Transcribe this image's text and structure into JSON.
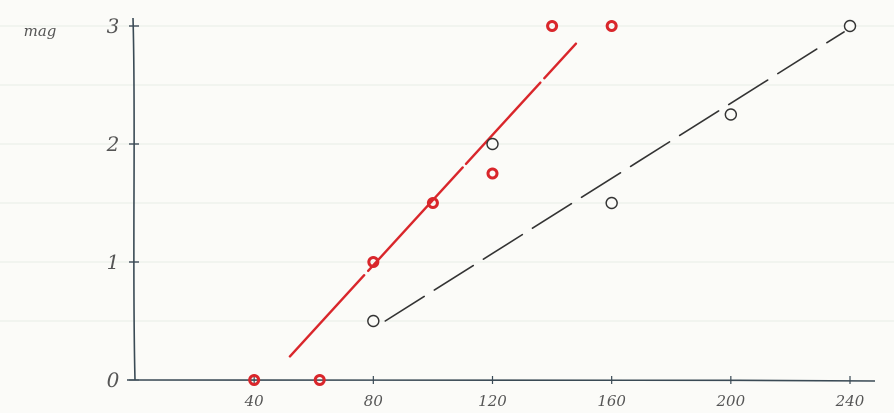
{
  "chart_data": {
    "type": "scatter",
    "title": "",
    "xlabel": "",
    "ylabel": "mag",
    "xlim": [
      0,
      240
    ],
    "ylim": [
      0,
      3
    ],
    "x_ticks": [
      40,
      80,
      120,
      160,
      200,
      240
    ],
    "x_tick_labels": [
      "40",
      "80",
      "120",
      "160",
      "200",
      "240"
    ],
    "y_ticks": [
      0,
      1,
      2,
      3
    ],
    "y_tick_labels": [
      "0",
      "1",
      "2",
      "3"
    ],
    "grid": true,
    "series": [
      {
        "color": "#d9262b",
        "points": [
          {
            "x": 40,
            "y": 0
          },
          {
            "x": 62,
            "y": 0
          },
          {
            "x": 80,
            "y": 1
          },
          {
            "x": 100,
            "y": 1.5
          },
          {
            "x": 120,
            "y": 1.75
          },
          {
            "x": 140,
            "y": 3
          },
          {
            "x": 160,
            "y": 3
          }
        ],
        "fit_line": [
          {
            "x": 52,
            "y": 0.2
          },
          {
            "x": 148,
            "y": 2.85
          }
        ],
        "line_style": "solid"
      },
      {
        "color": "#333333",
        "points": [
          {
            "x": 80,
            "y": 0.5
          },
          {
            "x": 120,
            "y": 2
          },
          {
            "x": 160,
            "y": 1.5
          },
          {
            "x": 200,
            "y": 2.25
          },
          {
            "x": 240,
            "y": 3
          }
        ],
        "fit_line": [
          {
            "x": 84,
            "y": 0.5
          },
          {
            "x": 238,
            "y": 2.95
          }
        ],
        "line_style": "dashed"
      }
    ]
  }
}
